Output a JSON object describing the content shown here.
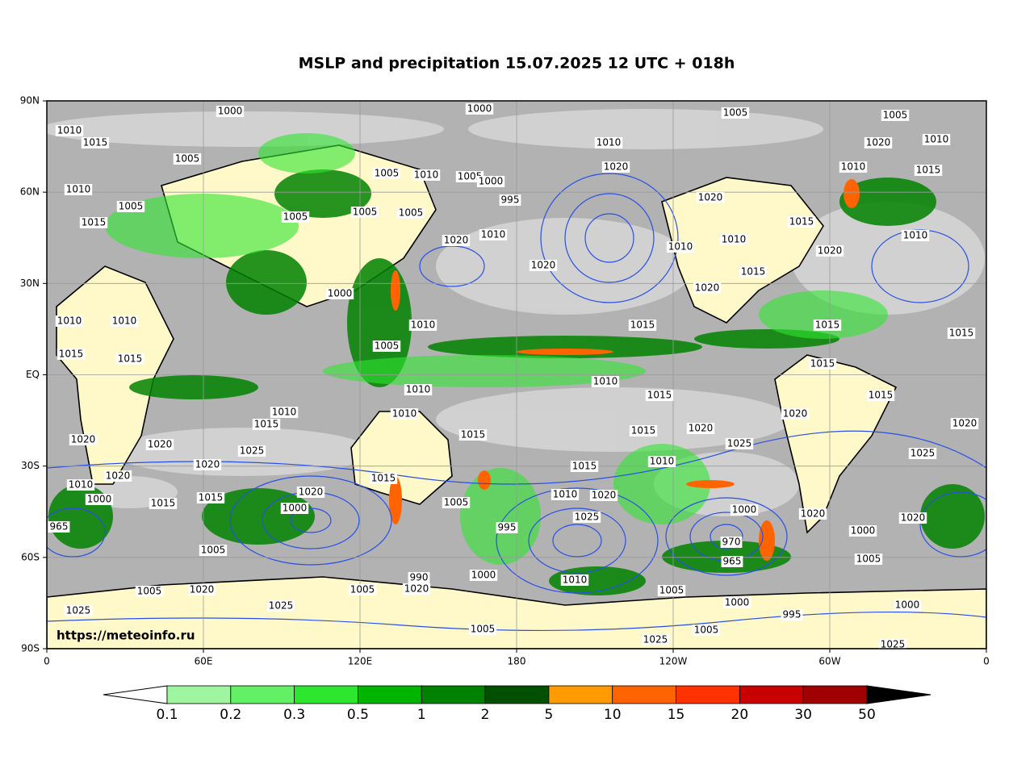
{
  "title": "MSLP and precipitation 15.07.2025 12 UTC + 018h",
  "lat_labels": [
    "90N",
    "60N",
    "30N",
    "EQ",
    "30S",
    "60S",
    "90S"
  ],
  "lon_labels": [
    "0",
    "60E",
    "120E",
    "180",
    "120W",
    "60W",
    "0"
  ],
  "source": "https://meteoinfo.ru",
  "colorbar": {
    "levels": [
      0.1,
      0.2,
      0.3,
      0.5,
      1,
      2,
      5,
      10,
      15,
      20,
      30,
      50
    ],
    "colors": [
      "#a0f5a0",
      "#64f064",
      "#2ee62e",
      "#00b400",
      "#008200",
      "#005000",
      "#ff9b00",
      "#ff6400",
      "#ff3200",
      "#c80000",
      "#a00000"
    ],
    "under_color": "#ffffff",
    "over_color": "#000000"
  },
  "isobar_labels": [
    "1000",
    "1000",
    "1005",
    "1005",
    "1010",
    "1015",
    "1010",
    "1020",
    "1010",
    "1005",
    "1005",
    "1010",
    "1005",
    "1000",
    "1020",
    "1010",
    "1015",
    "1010",
    "995",
    "1020",
    "1005",
    "1015",
    "1005",
    "1005",
    "1005",
    "1020",
    "1010",
    "1010",
    "1010",
    "1015",
    "1010",
    "1020",
    "1020",
    "1015",
    "1020",
    "1000",
    "1010",
    "1010",
    "1010",
    "1015",
    "1015",
    "1015",
    "1015",
    "1005",
    "1015",
    "1015",
    "1010",
    "1015",
    "1015",
    "1010",
    "1010",
    "1010",
    "1015",
    "1020",
    "1020",
    "1015",
    "1015",
    "1020",
    "1025",
    "1020",
    "1020",
    "1025",
    "1020",
    "1020",
    "1015",
    "1010",
    "1025",
    "1010",
    "1015",
    "1020",
    "1015",
    "1015",
    "1000",
    "1005",
    "1010",
    "1020",
    "1025",
    "1000",
    "1000",
    "1020",
    "1020",
    "965",
    "995",
    "970",
    "965",
    "1000",
    "1005",
    "1005",
    "1010",
    "1005",
    "1020",
    "990",
    "1000",
    "1005",
    "1000",
    "995",
    "1000",
    "1025",
    "1025",
    "1005",
    "1020",
    "1005",
    "1005",
    "1025",
    "1025"
  ]
}
